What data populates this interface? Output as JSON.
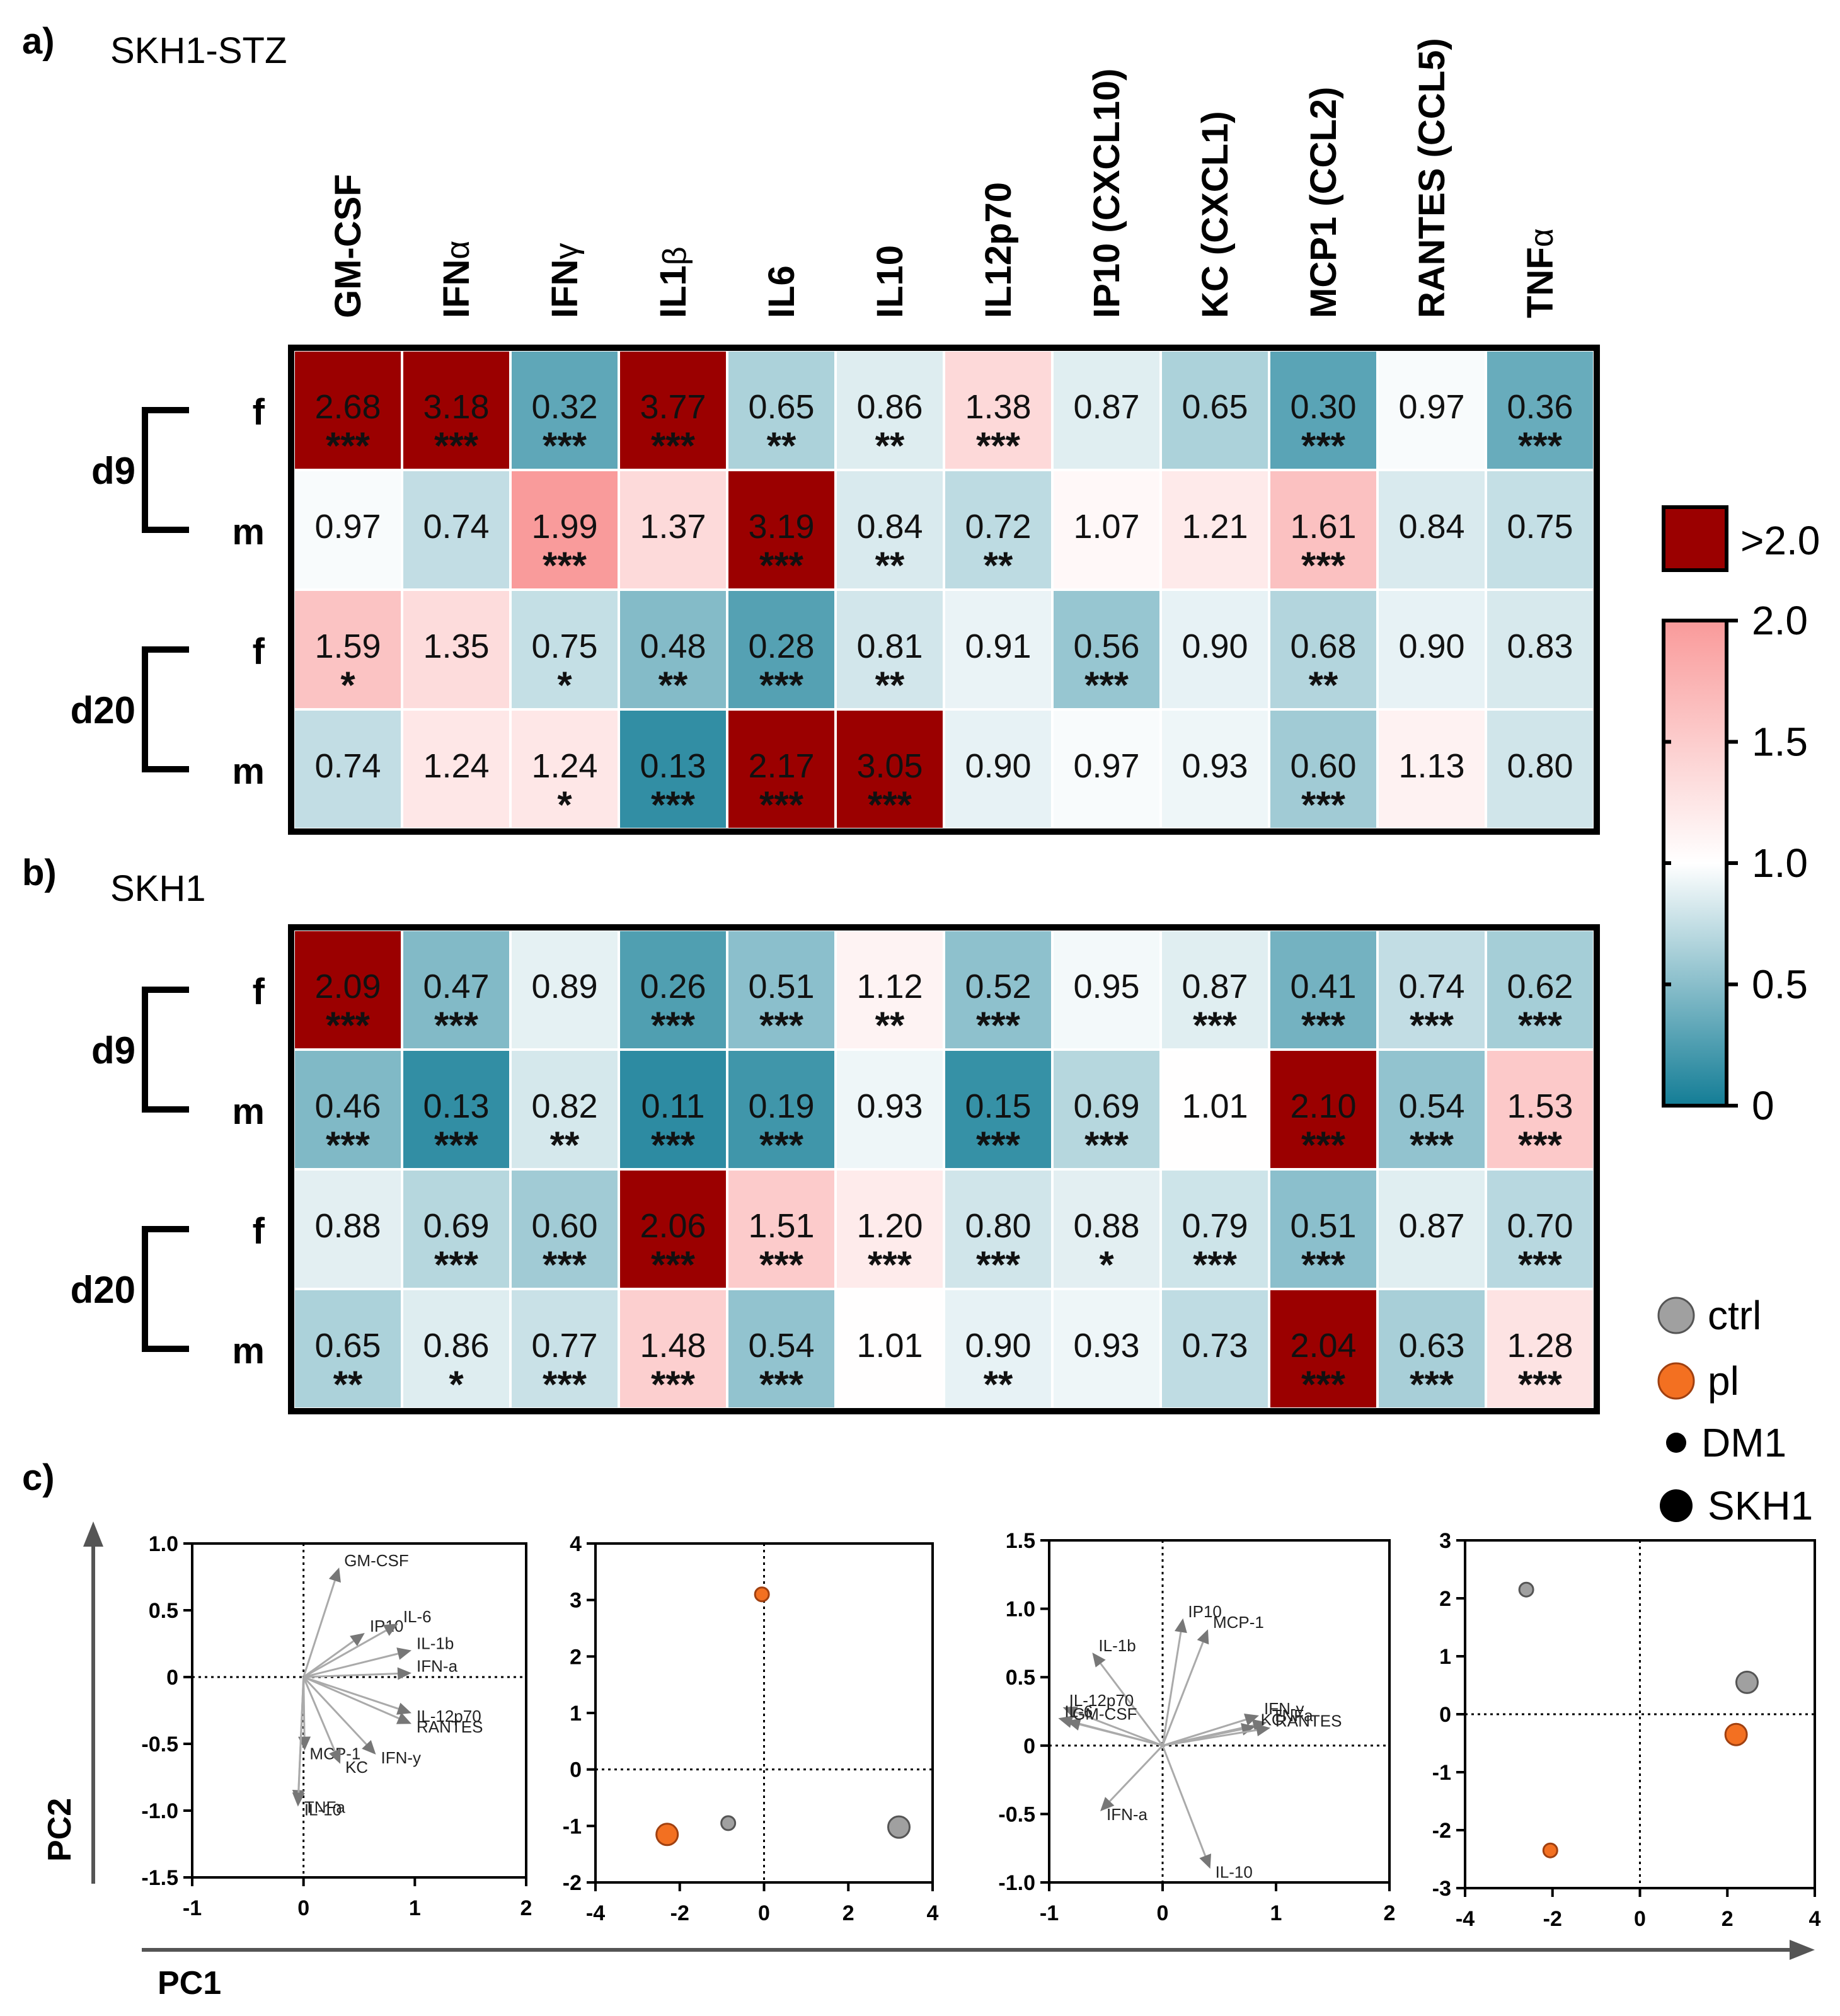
{
  "panel_labels": {
    "a": "a)",
    "b": "b)",
    "c": "c)"
  },
  "panel_titles": {
    "a": "SKH1-STZ",
    "b": "SKH1"
  },
  "heatmap_legend": {
    "above_label": ">2.0",
    "ticks": [
      "2.0",
      "1.5",
      "1.0",
      "0.5",
      "0"
    ],
    "tick_values": [
      2.0,
      1.5,
      1.0,
      0.5,
      0
    ],
    "colors": {
      "low": "#137d96",
      "mid": "#ffffff",
      "high": "#f99a9a",
      "above": "#9b0000"
    }
  },
  "scatter_legend": [
    {
      "key": "ctrl",
      "label": "ctrl",
      "color": "#a0a0a0"
    },
    {
      "key": "pl",
      "label": "pl",
      "color": "#f37021"
    },
    {
      "key": "dm1",
      "label": "DM1",
      "color": "#000000"
    },
    {
      "key": "skh1",
      "label": "SKH1",
      "color": "#000000"
    }
  ],
  "axis_titles": {
    "pc1": "PC1",
    "pc2": "PC2"
  },
  "chart_data": [
    {
      "type": "heatmap",
      "id": "a",
      "title": "SKH1-STZ",
      "columns": [
        "GM-CSF",
        "IFNα",
        "IFNγ",
        "IL1β",
        "IL6",
        "IL10",
        "IL12p70",
        "IP10 (CXCL10)",
        "KC (CXCL1)",
        "MCP1 (CCL2)",
        "RANTES (CCL5)",
        "TNFα"
      ],
      "groups": [
        "d9",
        "d20"
      ],
      "rows": [
        {
          "group": "d9",
          "label": "f",
          "values": [
            2.68,
            3.18,
            0.32,
            3.77,
            0.65,
            0.86,
            1.38,
            0.87,
            0.65,
            0.3,
            0.97,
            0.36
          ],
          "labels": [
            "2.68",
            "3.18",
            "0.32",
            "3.77",
            "0.65",
            "0.86",
            "1.38",
            "0.87",
            "0.65",
            "0.30",
            "0.97",
            "0.36"
          ],
          "sig": [
            "***",
            "***",
            "***",
            "***",
            "**",
            "**",
            "***",
            "",
            "",
            "***",
            "",
            "***"
          ]
        },
        {
          "group": "d9",
          "label": "m",
          "values": [
            0.97,
            0.74,
            1.99,
            1.37,
            3.19,
            0.84,
            0.72,
            1.07,
            1.21,
            1.61,
            0.84,
            0.75
          ],
          "labels": [
            "0.97",
            "0.74",
            "1.99",
            "1.37",
            "3.19",
            "0.84",
            "0.72",
            "1.07",
            "1.21",
            "1.61",
            "0.84",
            "0.75"
          ],
          "sig": [
            "",
            "",
            "***",
            "",
            "***",
            "**",
            "**",
            "",
            "",
            "***",
            "",
            ""
          ]
        },
        {
          "group": "d20",
          "label": "f",
          "values": [
            1.59,
            1.35,
            0.75,
            0.48,
            0.28,
            0.81,
            0.91,
            0.56,
            0.9,
            0.68,
            0.9,
            0.83
          ],
          "labels": [
            "1.59",
            "1.35",
            "0.75",
            "0.48",
            "0.28",
            "0.81",
            "0.91",
            "0.56",
            "0.90",
            "0.68",
            "0.90",
            "0.83"
          ],
          "sig": [
            "*",
            "",
            "*",
            "**",
            "***",
            "**",
            "",
            "***",
            "",
            "**",
            "",
            ""
          ]
        },
        {
          "group": "d20",
          "label": "m",
          "values": [
            0.74,
            1.24,
            1.24,
            0.13,
            2.17,
            3.05,
            0.9,
            0.97,
            0.93,
            0.6,
            1.13,
            0.8
          ],
          "labels": [
            "0.74",
            "1.24",
            "1.24",
            "0.13",
            "2.17",
            "3.05",
            "0.90",
            "0.97",
            "0.93",
            "0.60",
            "1.13",
            "0.80"
          ],
          "sig": [
            "",
            "",
            "*",
            "***",
            "***",
            "***",
            "",
            "",
            "",
            "***",
            "",
            ""
          ]
        }
      ]
    },
    {
      "type": "heatmap",
      "id": "b",
      "title": "SKH1",
      "columns": [
        "GM-CSF",
        "IFNα",
        "IFNγ",
        "IL1β",
        "IL6",
        "IL10",
        "IL12p70",
        "IP10 (CXCL10)",
        "KC (CXCL1)",
        "MCP1 (CCL2)",
        "RANTES (CCL5)",
        "TNFα"
      ],
      "groups": [
        "d9",
        "d20"
      ],
      "rows": [
        {
          "group": "d9",
          "label": "f",
          "values": [
            2.09,
            0.47,
            0.89,
            0.26,
            0.51,
            1.12,
            0.52,
            0.95,
            0.87,
            0.41,
            0.74,
            0.62
          ],
          "labels": [
            "2.09",
            "0.47",
            "0.89",
            "0.26",
            "0.51",
            "1.12",
            "0.52",
            "0.95",
            "0.87",
            "0.41",
            "0.74",
            "0.62"
          ],
          "sig": [
            "***",
            "***",
            "",
            "***",
            "***",
            "**",
            "***",
            "",
            "***",
            "***",
            "***",
            "***"
          ]
        },
        {
          "group": "d9",
          "label": "m",
          "values": [
            0.46,
            0.13,
            0.82,
            0.11,
            0.19,
            0.93,
            0.15,
            0.69,
            1.01,
            2.1,
            0.54,
            1.53
          ],
          "labels": [
            "0.46",
            "0.13",
            "0.82",
            "0.11",
            "0.19",
            "0.93",
            "0.15",
            "0.69",
            "1.01",
            "2.10",
            "0.54",
            "1.53"
          ],
          "sig": [
            "***",
            "***",
            "**",
            "***",
            "***",
            "",
            "***",
            "***",
            "",
            "***",
            "***",
            "***"
          ]
        },
        {
          "group": "d20",
          "label": "f",
          "values": [
            0.88,
            0.69,
            0.6,
            2.06,
            1.51,
            1.2,
            0.8,
            0.88,
            0.79,
            0.51,
            0.87,
            0.7
          ],
          "labels": [
            "0.88",
            "0.69",
            "0.60",
            "2.06",
            "1.51",
            "1.20",
            "0.80",
            "0.88",
            "0.79",
            "0.51",
            "0.87",
            "0.70"
          ],
          "sig": [
            "",
            "***",
            "***",
            "***",
            "***",
            "***",
            "***",
            "*",
            "***",
            "***",
            "",
            "***"
          ]
        },
        {
          "group": "d20",
          "label": "m",
          "values": [
            0.65,
            0.86,
            0.77,
            1.48,
            0.54,
            1.01,
            0.9,
            0.93,
            0.73,
            2.04,
            0.63,
            1.28
          ],
          "labels": [
            "0.65",
            "0.86",
            "0.77",
            "1.48",
            "0.54",
            "1.01",
            "0.90",
            "0.93",
            "0.73",
            "2.04",
            "0.63",
            "1.28"
          ],
          "sig": [
            "**",
            "*",
            "***",
            "***",
            "***",
            "",
            "**",
            "",
            "",
            "***",
            "***",
            "***"
          ]
        }
      ]
    },
    {
      "type": "biplot-loadings",
      "id": "c1",
      "xlabel": "PC1",
      "ylabel": "PC2",
      "xlim": [
        -1,
        2
      ],
      "ylim": [
        -1.5,
        1.0
      ],
      "xticks": [
        -1,
        0,
        1,
        2
      ],
      "xtick_labels": [
        "-1",
        "0",
        "1",
        "2"
      ],
      "yticks": [
        1.0,
        0.5,
        0,
        -0.5,
        -1.0,
        -1.5
      ],
      "ytick_labels": [
        "1.0",
        "0.5",
        "0",
        "-0.5",
        "-1.0",
        "-1.5"
      ],
      "vectors": [
        {
          "label": "GM-CSF",
          "x": 0.32,
          "y": 0.82
        },
        {
          "label": "IP10",
          "x": 0.55,
          "y": 0.33
        },
        {
          "label": "IL-6",
          "x": 0.85,
          "y": 0.4
        },
        {
          "label": "IL-1b",
          "x": 0.97,
          "y": 0.2
        },
        {
          "label": "IFN-a",
          "x": 0.97,
          "y": 0.03
        },
        {
          "label": "IL-12p70",
          "x": 0.97,
          "y": -0.27
        },
        {
          "label": "RANTES",
          "x": 0.97,
          "y": -0.35
        },
        {
          "label": "MCP-1",
          "x": 0.01,
          "y": -0.55
        },
        {
          "label": "KC",
          "x": 0.33,
          "y": -0.65
        },
        {
          "label": "IFN-y",
          "x": 0.65,
          "y": -0.58
        },
        {
          "label": "TNFa",
          "x": -0.05,
          "y": -0.95
        },
        {
          "label": "IL-10",
          "x": -0.05,
          "y": -0.97
        }
      ]
    },
    {
      "type": "scatter",
      "id": "c2",
      "xlabel": "PC1",
      "ylabel": "PC2",
      "xlim": [
        -4,
        4
      ],
      "ylim": [
        -2,
        4
      ],
      "xticks": [
        -4,
        -2,
        0,
        2,
        4
      ],
      "xtick_labels": [
        "-4",
        "-2",
        "0",
        "2",
        "4"
      ],
      "yticks": [
        4,
        3,
        2,
        1,
        0,
        -1,
        -2
      ],
      "ytick_labels": [
        "4",
        "3",
        "2",
        "1",
        "0",
        "-1",
        "-2"
      ],
      "points": [
        {
          "treatment": "pl",
          "strain": "DM1",
          "x": -0.05,
          "y": 3.1
        },
        {
          "treatment": "pl",
          "strain": "SKH1",
          "x": -2.3,
          "y": -1.15
        },
        {
          "treatment": "ctrl",
          "strain": "DM1",
          "x": -0.85,
          "y": -0.95
        },
        {
          "treatment": "ctrl",
          "strain": "SKH1",
          "x": 3.2,
          "y": -1.02
        }
      ]
    },
    {
      "type": "biplot-loadings",
      "id": "c3",
      "xlabel": "PC1",
      "ylabel": "PC2",
      "xlim": [
        -1,
        2
      ],
      "ylim": [
        -1.0,
        1.5
      ],
      "xticks": [
        -1,
        0,
        1,
        2
      ],
      "xtick_labels": [
        "-1",
        "0",
        "1",
        "2"
      ],
      "yticks": [
        1.5,
        1.0,
        0.5,
        0,
        -0.5,
        -1.0
      ],
      "ytick_labels": [
        "1.5",
        "1.0",
        "0.5",
        "0",
        "-0.5",
        "-1.0"
      ],
      "vectors": [
        {
          "label": "IP10",
          "x": 0.18,
          "y": 0.93
        },
        {
          "label": "MCP-1",
          "x": 0.4,
          "y": 0.85
        },
        {
          "label": "IL-1b",
          "x": -0.62,
          "y": 0.68
        },
        {
          "label": "IL-12p70",
          "x": -0.88,
          "y": 0.28
        },
        {
          "label": "IL-6",
          "x": -0.92,
          "y": 0.2
        },
        {
          "label": "GM-CSF",
          "x": -0.85,
          "y": 0.18
        },
        {
          "label": "IFN-y",
          "x": 0.85,
          "y": 0.22
        },
        {
          "label": "TNFa",
          "x": 0.92,
          "y": 0.17
        },
        {
          "label": "KC",
          "x": 0.82,
          "y": 0.14
        },
        {
          "label": "RANTES",
          "x": 0.95,
          "y": 0.13
        },
        {
          "label": "IFN-a",
          "x": -0.55,
          "y": -0.48
        },
        {
          "label": "IL-10",
          "x": 0.42,
          "y": -0.9
        }
      ]
    },
    {
      "type": "scatter",
      "id": "c4",
      "xlabel": "PC1",
      "ylabel": "PC2",
      "xlim": [
        -4,
        4
      ],
      "ylim": [
        -3,
        3
      ],
      "xticks": [
        -4,
        -2,
        0,
        2,
        4
      ],
      "xtick_labels": [
        "-4",
        "-2",
        "0",
        "2",
        "4"
      ],
      "yticks": [
        3,
        2,
        1,
        0,
        -1,
        -2,
        -3
      ],
      "ytick_labels": [
        "3",
        "2",
        "1",
        "0",
        "-1",
        "-2",
        "-3"
      ],
      "points": [
        {
          "treatment": "ctrl",
          "strain": "DM1",
          "x": -2.6,
          "y": 2.15
        },
        {
          "treatment": "ctrl",
          "strain": "SKH1",
          "x": 2.45,
          "y": 0.55
        },
        {
          "treatment": "pl",
          "strain": "SKH1",
          "x": 2.2,
          "y": -0.35
        },
        {
          "treatment": "pl",
          "strain": "DM1",
          "x": -2.05,
          "y": -2.35
        }
      ]
    }
  ]
}
